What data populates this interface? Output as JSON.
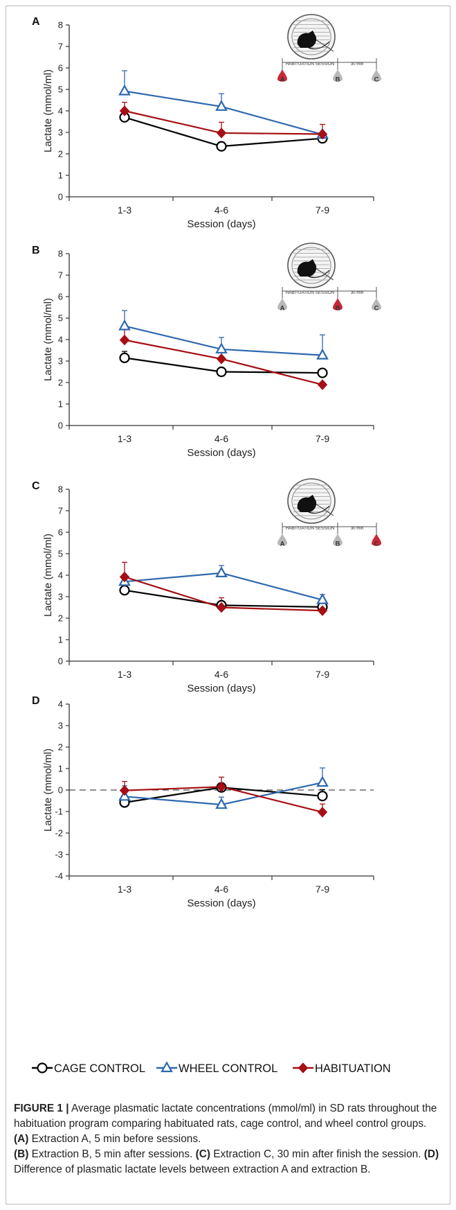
{
  "colors": {
    "cage_control": "#000000",
    "wheel_control": "#2e68ad",
    "habituation": "#a50f15",
    "drop_active": "#c8283a",
    "drop_inactive": "#b8b8b8"
  },
  "inset": {
    "session_label": "HABITUATION SESSION",
    "interval_label": "30 min",
    "points": [
      "A",
      "B",
      "C"
    ]
  },
  "legend": {
    "items": [
      {
        "label": "CAGE CONTROL",
        "series": "cage_control"
      },
      {
        "label": "WHEEL CONTROL",
        "series": "wheel_control"
      },
      {
        "label": "HABITUATION",
        "series": "habituation"
      }
    ]
  },
  "caption": {
    "lead": "FIGURE 1 |",
    "text1": " Average plasmatic lactate concentrations (mmol/ml) in SD rats throughout the habituation program comparing habituated rats, cage control, and wheel control groups. ",
    "a_tag": "(A)",
    "a_text": " Extraction A, 5 min before sessions.",
    "b_tag": "(B)",
    "b_text": " Extraction B, 5 min after sessions. ",
    "c_tag": "(C)",
    "c_text": " Extraction C, 30 min after finish the session. ",
    "d_tag": "(D)",
    "d_text": " Difference of plasmatic lactate levels between extraction A and extraction B."
  },
  "chart_data": [
    {
      "panel": "A",
      "type": "line",
      "categories": [
        "1-3",
        "4-6",
        "7-9"
      ],
      "xlabel": "Session (days)",
      "ylabel": "Lactate (mmol/ml)",
      "ylim": [
        0,
        8
      ],
      "yticks": [
        0,
        1,
        2,
        3,
        4,
        5,
        6,
        7,
        8
      ],
      "grid": false,
      "inset_active": "A",
      "series": [
        {
          "key": "cage_control",
          "values": [
            3.7,
            2.35,
            2.72
          ],
          "err": [
            0.15,
            0.12,
            0.2
          ]
        },
        {
          "key": "wheel_control",
          "values": [
            4.92,
            4.2,
            2.9
          ],
          "err": [
            0.95,
            0.6,
            0.0
          ]
        },
        {
          "key": "habituation",
          "values": [
            4.0,
            2.97,
            2.92
          ],
          "err": [
            0.4,
            0.5,
            0.45
          ]
        }
      ]
    },
    {
      "panel": "B",
      "type": "line",
      "categories": [
        "1-3",
        "4-6",
        "7-9"
      ],
      "xlabel": "Session (days)",
      "ylabel": "Lactate (mmol/ml)",
      "ylim": [
        0,
        8
      ],
      "yticks": [
        0,
        1,
        2,
        3,
        4,
        5,
        6,
        7,
        8
      ],
      "grid": false,
      "inset_active": "B",
      "series": [
        {
          "key": "cage_control",
          "values": [
            3.15,
            2.5,
            2.45
          ],
          "err": [
            0.3,
            0.1,
            0.1
          ]
        },
        {
          "key": "wheel_control",
          "values": [
            4.63,
            3.55,
            3.27
          ],
          "err": [
            0.72,
            0.55,
            0.95
          ]
        },
        {
          "key": "habituation",
          "values": [
            3.98,
            3.1,
            1.9
          ],
          "err": [
            0.6,
            0.45,
            0.1
          ]
        }
      ]
    },
    {
      "panel": "C",
      "type": "line",
      "categories": [
        "1-3",
        "4-6",
        "7-9"
      ],
      "xlabel": "Session (days)",
      "ylabel": "Lactate (mmol/ml)",
      "ylim": [
        0,
        8
      ],
      "yticks": [
        0,
        1,
        2,
        3,
        4,
        5,
        6,
        7,
        8
      ],
      "grid": false,
      "inset_active": "C",
      "series": [
        {
          "key": "cage_control",
          "values": [
            3.3,
            2.6,
            2.52
          ],
          "err": [
            0.3,
            0.15,
            0.1
          ]
        },
        {
          "key": "wheel_control",
          "values": [
            3.7,
            4.1,
            2.85
          ],
          "err": [
            0.3,
            0.35,
            0.25
          ]
        },
        {
          "key": "habituation",
          "values": [
            3.92,
            2.5,
            2.35
          ],
          "err": [
            0.68,
            0.45,
            0.2
          ]
        }
      ]
    },
    {
      "panel": "D",
      "type": "line",
      "categories": [
        "1-3",
        "4-6",
        "7-9"
      ],
      "xlabel": "Session (days)",
      "ylabel": "Lactate (mmol/ml)",
      "ylim": [
        -4,
        4
      ],
      "yticks": [
        -4,
        -3,
        -2,
        -1,
        0,
        1,
        2,
        3,
        4
      ],
      "grid": false,
      "zero_line": "dashed",
      "series": [
        {
          "key": "cage_control",
          "values": [
            -0.58,
            0.12,
            -0.28
          ],
          "err": [
            0.25,
            0.2,
            0.3
          ]
        },
        {
          "key": "wheel_control",
          "values": [
            -0.3,
            -0.68,
            0.35
          ],
          "err": [
            0.5,
            0.35,
            0.68
          ]
        },
        {
          "key": "habituation",
          "values": [
            -0.02,
            0.15,
            -1.03
          ],
          "err": [
            0.42,
            0.45,
            0.38
          ]
        }
      ]
    }
  ]
}
